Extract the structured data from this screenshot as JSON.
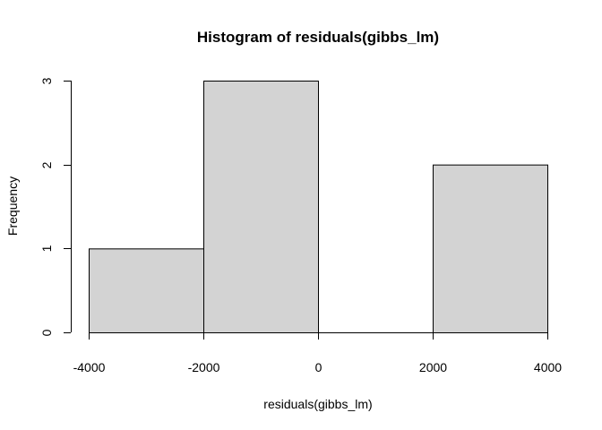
{
  "chart_data": {
    "type": "bar",
    "title": "Histogram of residuals(gibbs_lm)",
    "xlabel": "residuals(gibbs_lm)",
    "ylabel": "Frequency",
    "bins": [
      {
        "from": -4000,
        "to": -2000,
        "count": 1
      },
      {
        "from": -2000,
        "to": 0,
        "count": 3
      },
      {
        "from": 0,
        "to": 2000,
        "count": 0
      },
      {
        "from": 2000,
        "to": 4000,
        "count": 2
      }
    ],
    "xticks": [
      -4000,
      -2000,
      0,
      2000,
      4000
    ],
    "yticks": [
      0,
      1,
      2,
      3
    ],
    "xlim": [
      -4000,
      4000
    ],
    "ylim": [
      0,
      3
    ],
    "grid": false,
    "bar_fill": "#d3d3d3",
    "bar_stroke": "#000000"
  }
}
